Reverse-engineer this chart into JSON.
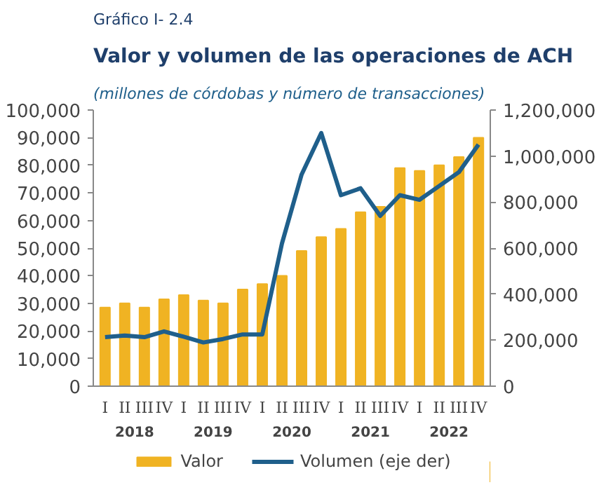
{
  "chart_data": {
    "type": "bar",
    "title": "Gráfico I- 2.4",
    "subtitle": "Valor y volumen de las operaciones de ACH",
    "ylabel": "(millones de córdobas y número de transacciones)",
    "categories": [
      "I",
      "II",
      "III",
      "IV",
      "I",
      "II",
      "III",
      "IV",
      "I",
      "II",
      "III",
      "IV",
      "I",
      "II",
      "III",
      "IV",
      "I",
      "II",
      "III",
      "IV"
    ],
    "annotations": [
      "2018",
      "2019",
      "2020",
      "2021",
      "2022"
    ],
    "series": [
      {
        "name": "Valor",
        "color": "#f0b323",
        "values": [
          28500,
          30000,
          28500,
          31500,
          33000,
          31000,
          30000,
          35000,
          37000,
          40000,
          49000,
          54000,
          57000,
          63000,
          65000,
          79000,
          78000,
          80000,
          83000,
          90000
        ]
      },
      {
        "name": "Volumen (eje der)",
        "type": "line",
        "axis": "y2",
        "color": "#1f5f8b",
        "values": [
          213000,
          220000,
          213000,
          238000,
          215000,
          190000,
          205000,
          225000,
          225000,
          620000,
          920000,
          1100000,
          830000,
          860000,
          740000,
          830000,
          810000,
          870000,
          930000,
          1050000
        ]
      }
    ],
    "ylim": [
      0,
      100000
    ],
    "yticks": [
      0,
      {
        "value": 10000,
        "label": "10,000"
      },
      {
        "value": 20000,
        "label": "20,000"
      },
      {
        "value": 30000,
        "label": "30,000"
      },
      {
        "value": 40000,
        "label": "40,000"
      },
      {
        "value": 50000,
        "label": "50,000"
      },
      {
        "value": 60000,
        "label": "60,000"
      },
      {
        "value": 70000,
        "label": "70,000"
      },
      {
        "value": 80000,
        "label": "80,000"
      },
      {
        "value": 90000,
        "label": "90,000"
      },
      {
        "value": 100000,
        "label": "100,000"
      }
    ],
    "y2lim": [
      0,
      1200000
    ],
    "y2ticks": [
      0,
      {
        "value": 200000,
        "label": "200,000"
      },
      {
        "value": 400000,
        "label": "400,000"
      },
      {
        "value": 600000,
        "label": "600,000"
      },
      {
        "value": 800000,
        "label": "800,000"
      },
      {
        "value": 1000000,
        "label": "1,000,000"
      },
      {
        "value": 1200000,
        "label": "1,200,000"
      }
    ],
    "grid": false,
    "legend": "bottom",
    "line_style": "solid",
    "marker": "none"
  }
}
